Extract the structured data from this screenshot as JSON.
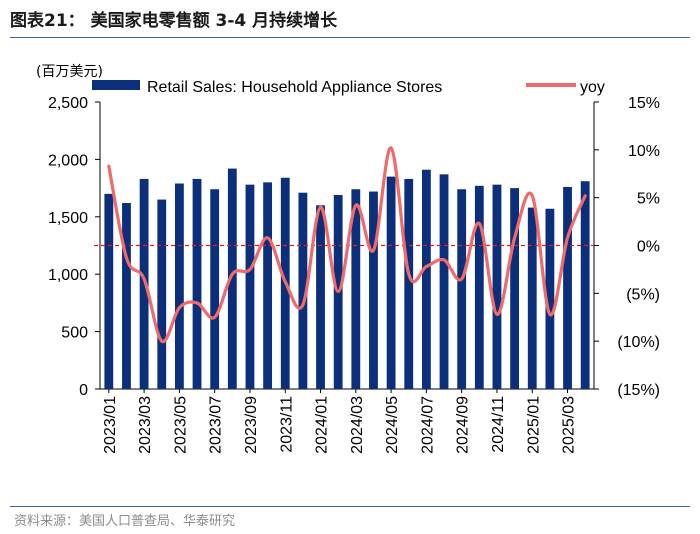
{
  "header": {
    "title": "图表21： 美国家电零售额 3-4 月持续增长",
    "source": "资料来源：美国人口普查局、华泰研究"
  },
  "chart_data": {
    "type": "bar+line",
    "unit_label": "(百万美元)",
    "categories": [
      "2023/01",
      "2023/02",
      "2023/03",
      "2023/04",
      "2023/05",
      "2023/06",
      "2023/07",
      "2023/08",
      "2023/09",
      "2023/10",
      "2023/11",
      "2023/12",
      "2024/01",
      "2024/02",
      "2024/03",
      "2024/04",
      "2024/05",
      "2024/06",
      "2024/07",
      "2024/08",
      "2024/09",
      "2024/10",
      "2024/11",
      "2024/12",
      "2025/01",
      "2025/02",
      "2025/03",
      "2025/04"
    ],
    "x_tick_labels": [
      "2023/01",
      "2023/03",
      "2023/05",
      "2023/07",
      "2023/09",
      "2023/11",
      "2024/01",
      "2024/03",
      "2024/05",
      "2024/07",
      "2024/09",
      "2024/11",
      "2025/01",
      "2025/03"
    ],
    "series": [
      {
        "name": "Retail Sales: Household Appliance Stores",
        "type": "bar",
        "axis": "left",
        "color": "#0b2f7a",
        "values": [
          1700,
          1620,
          1830,
          1650,
          1790,
          1830,
          1740,
          1920,
          1780,
          1800,
          1840,
          1710,
          1600,
          1690,
          1740,
          1720,
          1850,
          1830,
          1910,
          1870,
          1740,
          1770,
          1780,
          1750,
          1580,
          1570,
          1760,
          1810
        ]
      },
      {
        "name": "yoy",
        "type": "line",
        "axis": "right",
        "color": "#f06a6a",
        "values": [
          8.3,
          -1.3,
          -3.5,
          -10.0,
          -6.5,
          -6.0,
          -7.5,
          -3.0,
          -2.5,
          0.8,
          -3.8,
          -6.2,
          4.0,
          -4.8,
          4.2,
          -0.5,
          10.2,
          -3.0,
          -2.2,
          -1.5,
          -3.5,
          2.3,
          -7.2,
          0.8,
          5.2,
          -7.2,
          0.8,
          5.2
        ]
      }
    ],
    "left_axis": {
      "min": 0,
      "max": 2500,
      "step": 500,
      "tick_labels": [
        "0",
        "500",
        "1,000",
        "1,500",
        "2,000",
        "2,500"
      ]
    },
    "right_axis": {
      "min": -15,
      "max": 15,
      "step": 5,
      "tick_labels": [
        "(15%)",
        "(10%)",
        "(5%)",
        "0%",
        "5%",
        "10%",
        "15%"
      ]
    },
    "reference_line": {
      "axis": "right",
      "value": 0,
      "style": "dashed",
      "color": "#e02020"
    },
    "legend": [
      "Retail Sales: Household Appliance Stores",
      "yoy"
    ],
    "legend_position": "top"
  }
}
